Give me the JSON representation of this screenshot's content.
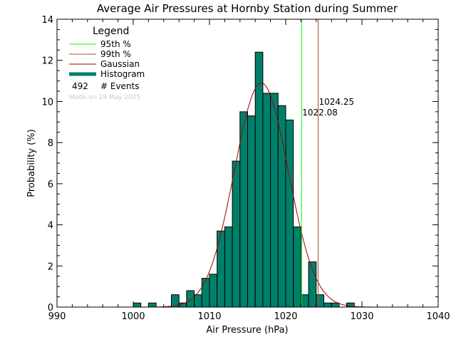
{
  "chart_data": {
    "type": "bar",
    "title": "Average Air Pressures at Hornby Station during Summer",
    "xlabel": "Air Pressure (hPa)",
    "ylabel": "Probability (%)",
    "xlim": [
      990,
      1040
    ],
    "ylim": [
      0,
      14
    ],
    "xticks": [
      "990",
      "1000",
      "1010",
      "1020",
      "1030",
      "1040"
    ],
    "yticks": [
      "0",
      "2",
      "4",
      "6",
      "8",
      "10",
      "12",
      "14"
    ],
    "bin_width": 1,
    "histogram": {
      "bin_starts": [
        1000,
        1002,
        1005,
        1006,
        1007,
        1008,
        1009,
        1010,
        1011,
        1012,
        1013,
        1014,
        1015,
        1016,
        1017,
        1018,
        1019,
        1020,
        1021,
        1022,
        1023,
        1024,
        1025,
        1026,
        1028
      ],
      "values": [
        0.2,
        0.2,
        0.6,
        0.2,
        0.8,
        0.6,
        1.4,
        1.6,
        3.7,
        3.9,
        7.1,
        9.5,
        9.3,
        12.4,
        10.4,
        10.4,
        9.8,
        9.1,
        3.9,
        0.6,
        2.2,
        0.6,
        0.2,
        0.2,
        0.2
      ],
      "color": "#00806a"
    },
    "gaussian": {
      "mean": 1016.8,
      "sd": 3.55,
      "peak": 10.9,
      "color": "#a00000"
    },
    "percentile_95": {
      "value": 1022.08,
      "label": "1022.08",
      "color": "#00ff00"
    },
    "percentile_99": {
      "value": 1024.25,
      "label": "1024.25",
      "color": "#a0522d"
    },
    "legend": {
      "title": "Legend",
      "items": [
        {
          "label": "95th %",
          "color": "#00ff00",
          "kind": "line"
        },
        {
          "label": "99th %",
          "color": "#a0522d",
          "kind": "line"
        },
        {
          "label": "Gaussian",
          "color": "#a00000",
          "kind": "line"
        },
        {
          "label": "Histogram",
          "color": "#00806a",
          "kind": "thick"
        }
      ],
      "events_count": "492",
      "events_label": "# Events",
      "made_on": "Made on 29 May 2025"
    }
  }
}
